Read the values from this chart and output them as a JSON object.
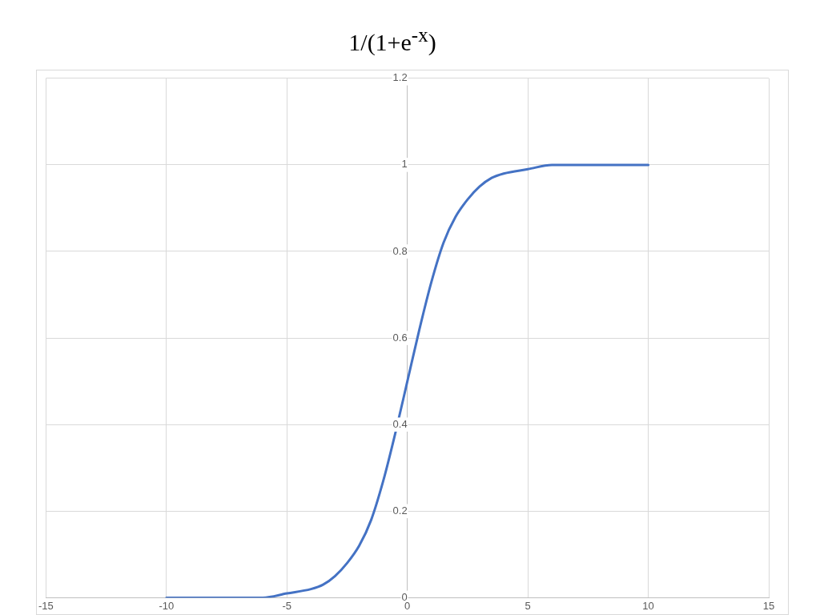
{
  "chart_data": {
    "type": "line",
    "title": "1/(1+e$^{-x}$)",
    "x": [
      -10,
      -9,
      -8,
      -7,
      -6,
      -5,
      -4,
      -3.5,
      -3,
      -2.5,
      -2,
      -1.5,
      -1,
      -0.5,
      0,
      0.5,
      1,
      1.5,
      2,
      2.5,
      3,
      3.5,
      4,
      5,
      6,
      7,
      8,
      9,
      10
    ],
    "series": [
      {
        "color": "#4472c4",
        "values": [
          0,
          0,
          0,
          0,
          0,
          0.01,
          0.02,
          0.03,
          0.05,
          0.08,
          0.12,
          0.18,
          0.27,
          0.38,
          0.5,
          0.62,
          0.73,
          0.82,
          0.88,
          0.92,
          0.95,
          0.97,
          0.98,
          0.99,
          1,
          1,
          1,
          1,
          1
        ]
      }
    ],
    "xlim": [
      -15,
      15
    ],
    "xticks": [
      -15,
      -10,
      -5,
      0,
      5,
      10,
      15
    ],
    "ylim": [
      0,
      1.2
    ],
    "yticks": [
      0,
      0.2,
      0.4,
      0.6,
      0.8,
      1,
      1.2
    ],
    "grid": true,
    "legend": false,
    "marker": "none",
    "line_style": "solid"
  }
}
